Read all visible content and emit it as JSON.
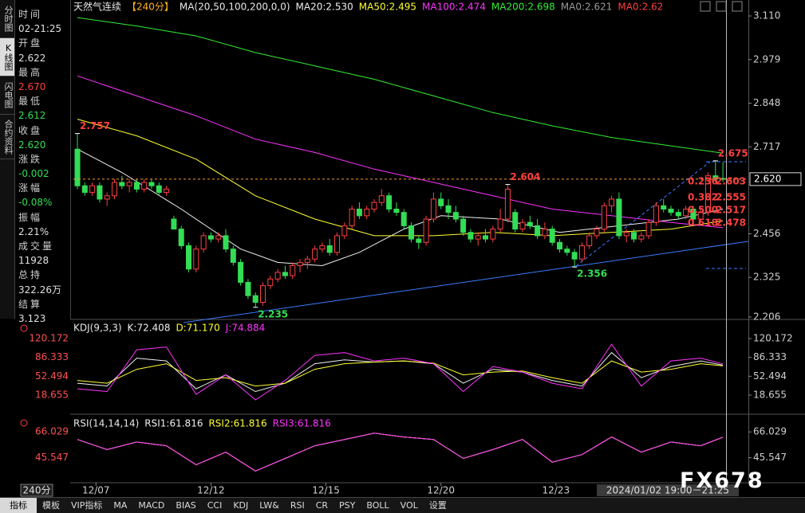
{
  "sidebar": {
    "tabs": [
      "分时图",
      "K线图",
      "闪电图",
      "合约资料"
    ],
    "rows": [
      {
        "label": "时间",
        "value": "02-21:25",
        "color": "#e0e0e0"
      },
      {
        "label": "开盘",
        "value": "2.622",
        "color": "#e0e0e0"
      },
      {
        "label": "最高",
        "value": "2.670",
        "color": "#ff4040"
      },
      {
        "label": "最低",
        "value": "2.612",
        "color": "#33dd55"
      },
      {
        "label": "收盘",
        "value": "2.620",
        "color": "#33dd55"
      },
      {
        "label": "涨跌",
        "value": "-0.002",
        "color": "#33dd55"
      },
      {
        "label": "涨幅",
        "value": "-0.08%",
        "color": "#33dd55"
      },
      {
        "label": "振幅",
        "value": "2.21%",
        "color": "#e0e0e0"
      },
      {
        "label": "成交量",
        "value": "11928",
        "color": "#e0e0e0"
      },
      {
        "label": "总持",
        "value": "322.26万",
        "color": "#e0e0e0"
      },
      {
        "label": "结算",
        "value": "3.123",
        "color": "#e0e0e0"
      }
    ]
  },
  "chart_data": [
    {
      "type": "candlestick",
      "title": "天然气连续",
      "period": "【240分】",
      "ma_params": "MA(20,50,100,200,0,0)",
      "up_color": "#ff4040",
      "down_color": "#33dd55",
      "xlim": [
        -0.54,
        90.43
      ],
      "xticks": [
        {
          "value": 2.5,
          "label": "12/07"
        },
        {
          "value": 18,
          "label": "12/12"
        },
        {
          "value": 33.5,
          "label": "12/15"
        },
        {
          "value": 49,
          "label": "12/20"
        },
        {
          "value": 64.5,
          "label": "12/23"
        }
      ],
      "cursor_label": "2024/01/02 19:00－21:25",
      "period_selector": "240分",
      "ylim": [
        2.201,
        3.134
      ],
      "yticks": [
        {
          "value": 3.11,
          "label": "3.110"
        },
        2.979,
        2.848,
        2.717,
        2.456,
        2.325,
        2.206
      ],
      "last_price": {
        "value": 2.62,
        "label": "2.620"
      },
      "open": [
        2.71,
        2.6,
        2.58,
        2.6,
        2.56,
        2.57,
        2.61,
        2.6,
        2.61,
        2.59,
        2.61,
        2.6,
        2.58,
        2.5,
        2.47,
        2.42,
        2.35,
        2.41,
        2.45,
        2.44,
        2.45,
        2.41,
        2.37,
        2.31,
        2.27,
        2.25,
        2.3,
        2.32,
        2.34,
        2.33,
        2.36,
        2.37,
        2.38,
        2.41,
        2.42,
        2.4,
        2.45,
        2.48,
        2.53,
        2.51,
        2.53,
        2.55,
        2.57,
        2.53,
        2.52,
        2.48,
        2.44,
        2.43,
        2.5,
        2.56,
        2.54,
        2.52,
        2.5,
        2.46,
        2.44,
        2.45,
        2.44,
        2.47,
        2.5,
        2.52,
        2.47,
        2.49,
        2.48,
        2.45,
        2.47,
        2.43,
        2.41,
        2.4,
        2.38,
        2.42,
        2.45,
        2.47,
        2.54,
        2.56,
        2.45,
        2.46,
        2.44,
        2.45,
        2.49,
        2.54,
        2.53,
        2.52,
        2.51,
        2.53,
        2.5,
        2.52,
        2.63,
        2.622
      ],
      "high": [
        2.757,
        2.61,
        2.61,
        2.61,
        2.58,
        2.62,
        2.63,
        2.62,
        2.62,
        2.62,
        2.62,
        2.61,
        2.6,
        2.51,
        2.48,
        2.43,
        2.42,
        2.46,
        2.46,
        2.46,
        2.47,
        2.42,
        2.38,
        2.32,
        2.28,
        2.31,
        2.33,
        2.35,
        2.36,
        2.37,
        2.38,
        2.39,
        2.42,
        2.43,
        2.44,
        2.46,
        2.49,
        2.54,
        2.55,
        2.54,
        2.56,
        2.59,
        2.58,
        2.55,
        2.53,
        2.49,
        2.45,
        2.51,
        2.58,
        2.58,
        2.56,
        2.54,
        2.51,
        2.47,
        2.46,
        2.47,
        2.48,
        2.53,
        2.604,
        2.53,
        2.5,
        2.51,
        2.5,
        2.49,
        2.48,
        2.44,
        2.42,
        2.41,
        2.43,
        2.46,
        2.48,
        2.55,
        2.57,
        2.58,
        2.47,
        2.47,
        2.46,
        2.5,
        2.55,
        2.56,
        2.54,
        2.53,
        2.54,
        2.54,
        2.53,
        2.64,
        2.675,
        2.67
      ],
      "low": [
        2.59,
        2.57,
        2.57,
        2.55,
        2.54,
        2.56,
        2.59,
        2.58,
        2.58,
        2.58,
        2.59,
        2.57,
        2.57,
        2.47,
        2.41,
        2.34,
        2.34,
        2.4,
        2.43,
        2.43,
        2.4,
        2.36,
        2.3,
        2.26,
        2.235,
        2.24,
        2.29,
        2.31,
        2.32,
        2.32,
        2.34,
        2.35,
        2.37,
        2.4,
        2.39,
        2.39,
        2.44,
        2.47,
        2.5,
        2.5,
        2.52,
        2.54,
        2.52,
        2.51,
        2.47,
        2.43,
        2.41,
        2.42,
        2.49,
        2.53,
        2.5,
        2.49,
        2.45,
        2.43,
        2.42,
        2.43,
        2.43,
        2.46,
        2.49,
        2.46,
        2.46,
        2.47,
        2.44,
        2.44,
        2.42,
        2.4,
        2.39,
        2.356,
        2.37,
        2.41,
        2.44,
        2.46,
        2.52,
        2.44,
        2.43,
        2.43,
        2.43,
        2.44,
        2.48,
        2.52,
        2.51,
        2.5,
        2.5,
        2.49,
        2.49,
        2.51,
        2.61,
        2.612
      ],
      "close": [
        2.6,
        2.58,
        2.6,
        2.56,
        2.57,
        2.61,
        2.6,
        2.61,
        2.59,
        2.61,
        2.6,
        2.58,
        2.59,
        2.47,
        2.42,
        2.35,
        2.41,
        2.45,
        2.44,
        2.45,
        2.41,
        2.37,
        2.31,
        2.27,
        2.25,
        2.3,
        2.32,
        2.34,
        2.33,
        2.36,
        2.37,
        2.38,
        2.41,
        2.42,
        2.4,
        2.45,
        2.48,
        2.53,
        2.51,
        2.53,
        2.55,
        2.57,
        2.53,
        2.52,
        2.48,
        2.44,
        2.43,
        2.5,
        2.56,
        2.54,
        2.52,
        2.5,
        2.46,
        2.44,
        2.45,
        2.44,
        2.47,
        2.5,
        2.59,
        2.47,
        2.49,
        2.48,
        2.45,
        2.47,
        2.43,
        2.41,
        2.4,
        2.38,
        2.42,
        2.45,
        2.47,
        2.54,
        2.56,
        2.45,
        2.46,
        2.44,
        2.45,
        2.49,
        2.54,
        2.53,
        2.52,
        2.51,
        2.53,
        2.5,
        2.52,
        2.63,
        2.62,
        2.62
      ],
      "ma_series": [
        {
          "name": "MA20:2.530",
          "color": "#f0f0f0",
          "x": [
            0,
            6,
            14,
            22,
            27,
            33,
            38,
            44,
            49,
            57,
            65,
            71,
            81,
            87
          ],
          "values": [
            2.71,
            2.64,
            2.53,
            2.41,
            2.37,
            2.36,
            2.4,
            2.47,
            2.51,
            2.5,
            2.46,
            2.475,
            2.5,
            2.53
          ]
        },
        {
          "name": "MA50:2.495",
          "color": "#ffff33",
          "x": [
            0,
            8,
            16,
            24,
            32,
            40,
            48,
            56,
            64,
            72,
            80,
            87
          ],
          "values": [
            2.8,
            2.75,
            2.68,
            2.57,
            2.5,
            2.45,
            2.45,
            2.46,
            2.45,
            2.46,
            2.47,
            2.495
          ]
        },
        {
          "name": "MA100:2.474",
          "color": "#ff33ff",
          "x": [
            0,
            8,
            16,
            24,
            32,
            40,
            48,
            56,
            64,
            72,
            80,
            87
          ],
          "values": [
            2.93,
            2.87,
            2.81,
            2.74,
            2.7,
            2.65,
            2.61,
            2.57,
            2.53,
            2.51,
            2.49,
            2.474
          ]
        },
        {
          "name": "MA200:2.698",
          "color": "#33ee33",
          "x": [
            0,
            8,
            16,
            24,
            32,
            40,
            48,
            56,
            64,
            72,
            80,
            87
          ],
          "values": [
            3.105,
            3.08,
            3.05,
            3.0,
            2.96,
            2.92,
            2.87,
            2.82,
            2.78,
            2.745,
            2.72,
            2.698
          ]
        }
      ],
      "extra_legend": [
        {
          "name": "MA0:2.621",
          "color": "#9a9a9a"
        },
        {
          "name": "MA0:2.62",
          "color": "#ff4040"
        }
      ],
      "markers": [
        {
          "x": 0,
          "value": 2.757
        },
        {
          "x": 58,
          "value": 2.604
        },
        {
          "x": 86,
          "value": 2.675
        },
        {
          "x": 24,
          "value": 2.235
        },
        {
          "x": 67,
          "value": 2.356
        }
      ],
      "fib": [
        {
          "ratio": 0.236,
          "value": 2.603
        },
        {
          "ratio": 0.382,
          "value": 2.555
        },
        {
          "ratio": {
            "value": 0.5,
            "label": "0.500"
          },
          "value": 2.517
        },
        {
          "ratio": 0.618,
          "value": 2.478
        }
      ]
    },
    {
      "type": "line",
      "title": "KDJ(9,3,3)",
      "x": [
        0,
        4,
        8,
        12,
        16,
        20,
        24,
        28,
        32,
        36,
        40,
        44,
        48,
        52,
        56,
        60,
        64,
        68,
        72,
        76,
        80,
        84,
        87
      ],
      "ylim": [
        -15.7,
        148.8
      ],
      "yticks": [
        120.172,
        86.333,
        52.494,
        18.655
      ],
      "series": [
        {
          "name": "K:72.408",
          "color": "#f0f0f0",
          "values": [
            40,
            35,
            85,
            80,
            30,
            55,
            25,
            40,
            75,
            82,
            78,
            80,
            75,
            40,
            65,
            60,
            45,
            35,
            95,
            50,
            70,
            80,
            72.408
          ]
        },
        {
          "name": "D:71.170",
          "color": "#ffff33",
          "values": [
            45,
            40,
            65,
            75,
            45,
            50,
            35,
            40,
            65,
            75,
            78,
            80,
            76,
            55,
            60,
            62,
            50,
            40,
            80,
            60,
            65,
            75,
            71.17
          ]
        },
        {
          "name": "J:74.884",
          "color": "#ff33ff",
          "values": [
            30,
            25,
            100,
            105,
            20,
            55,
            10,
            45,
            90,
            95,
            80,
            85,
            75,
            25,
            70,
            60,
            40,
            30,
            110,
            35,
            80,
            85,
            74.884
          ]
        }
      ]
    },
    {
      "type": "line",
      "title": "RSI(14,14,14)",
      "x": [
        0,
        4,
        8,
        12,
        16,
        20,
        24,
        28,
        32,
        36,
        40,
        44,
        48,
        52,
        56,
        60,
        64,
        68,
        72,
        76,
        80,
        84,
        87
      ],
      "ylim": [
        25.7,
        76.9
      ],
      "yticks": [
        66.029,
        45.547
      ],
      "series": [
        {
          "name": "RSI1:61.816",
          "color": "#f0f0f0",
          "values": [
            60,
            52,
            58,
            55,
            40,
            50,
            35,
            45,
            55,
            60,
            65,
            62,
            60,
            45,
            52,
            60,
            42,
            48,
            62,
            50,
            58,
            55,
            61.816
          ]
        },
        {
          "name": "RSI2:61.816",
          "color": "#ffff33",
          "values": [
            60,
            52,
            58,
            55,
            40,
            50,
            35,
            45,
            55,
            60,
            65,
            62,
            60,
            45,
            52,
            60,
            42,
            48,
            62,
            50,
            58,
            55,
            61.816
          ]
        },
        {
          "name": "RSI3:61.816",
          "color": "#ff33ff",
          "values": [
            60,
            52,
            58,
            55,
            40,
            50,
            35,
            45,
            55,
            60,
            65,
            62,
            60,
            45,
            52,
            60,
            42,
            48,
            62,
            50,
            58,
            55,
            61.816
          ]
        }
      ]
    }
  ],
  "toolbar": {
    "tabs": [
      "指标",
      "模板",
      "VIP指标",
      "MA",
      "MACD",
      "BIAS",
      "CCI",
      "KDJ",
      "LW&",
      "RSI",
      "CR",
      "PSY",
      "BOLL",
      "VOL",
      "设置"
    ]
  },
  "watermark": "FX678"
}
